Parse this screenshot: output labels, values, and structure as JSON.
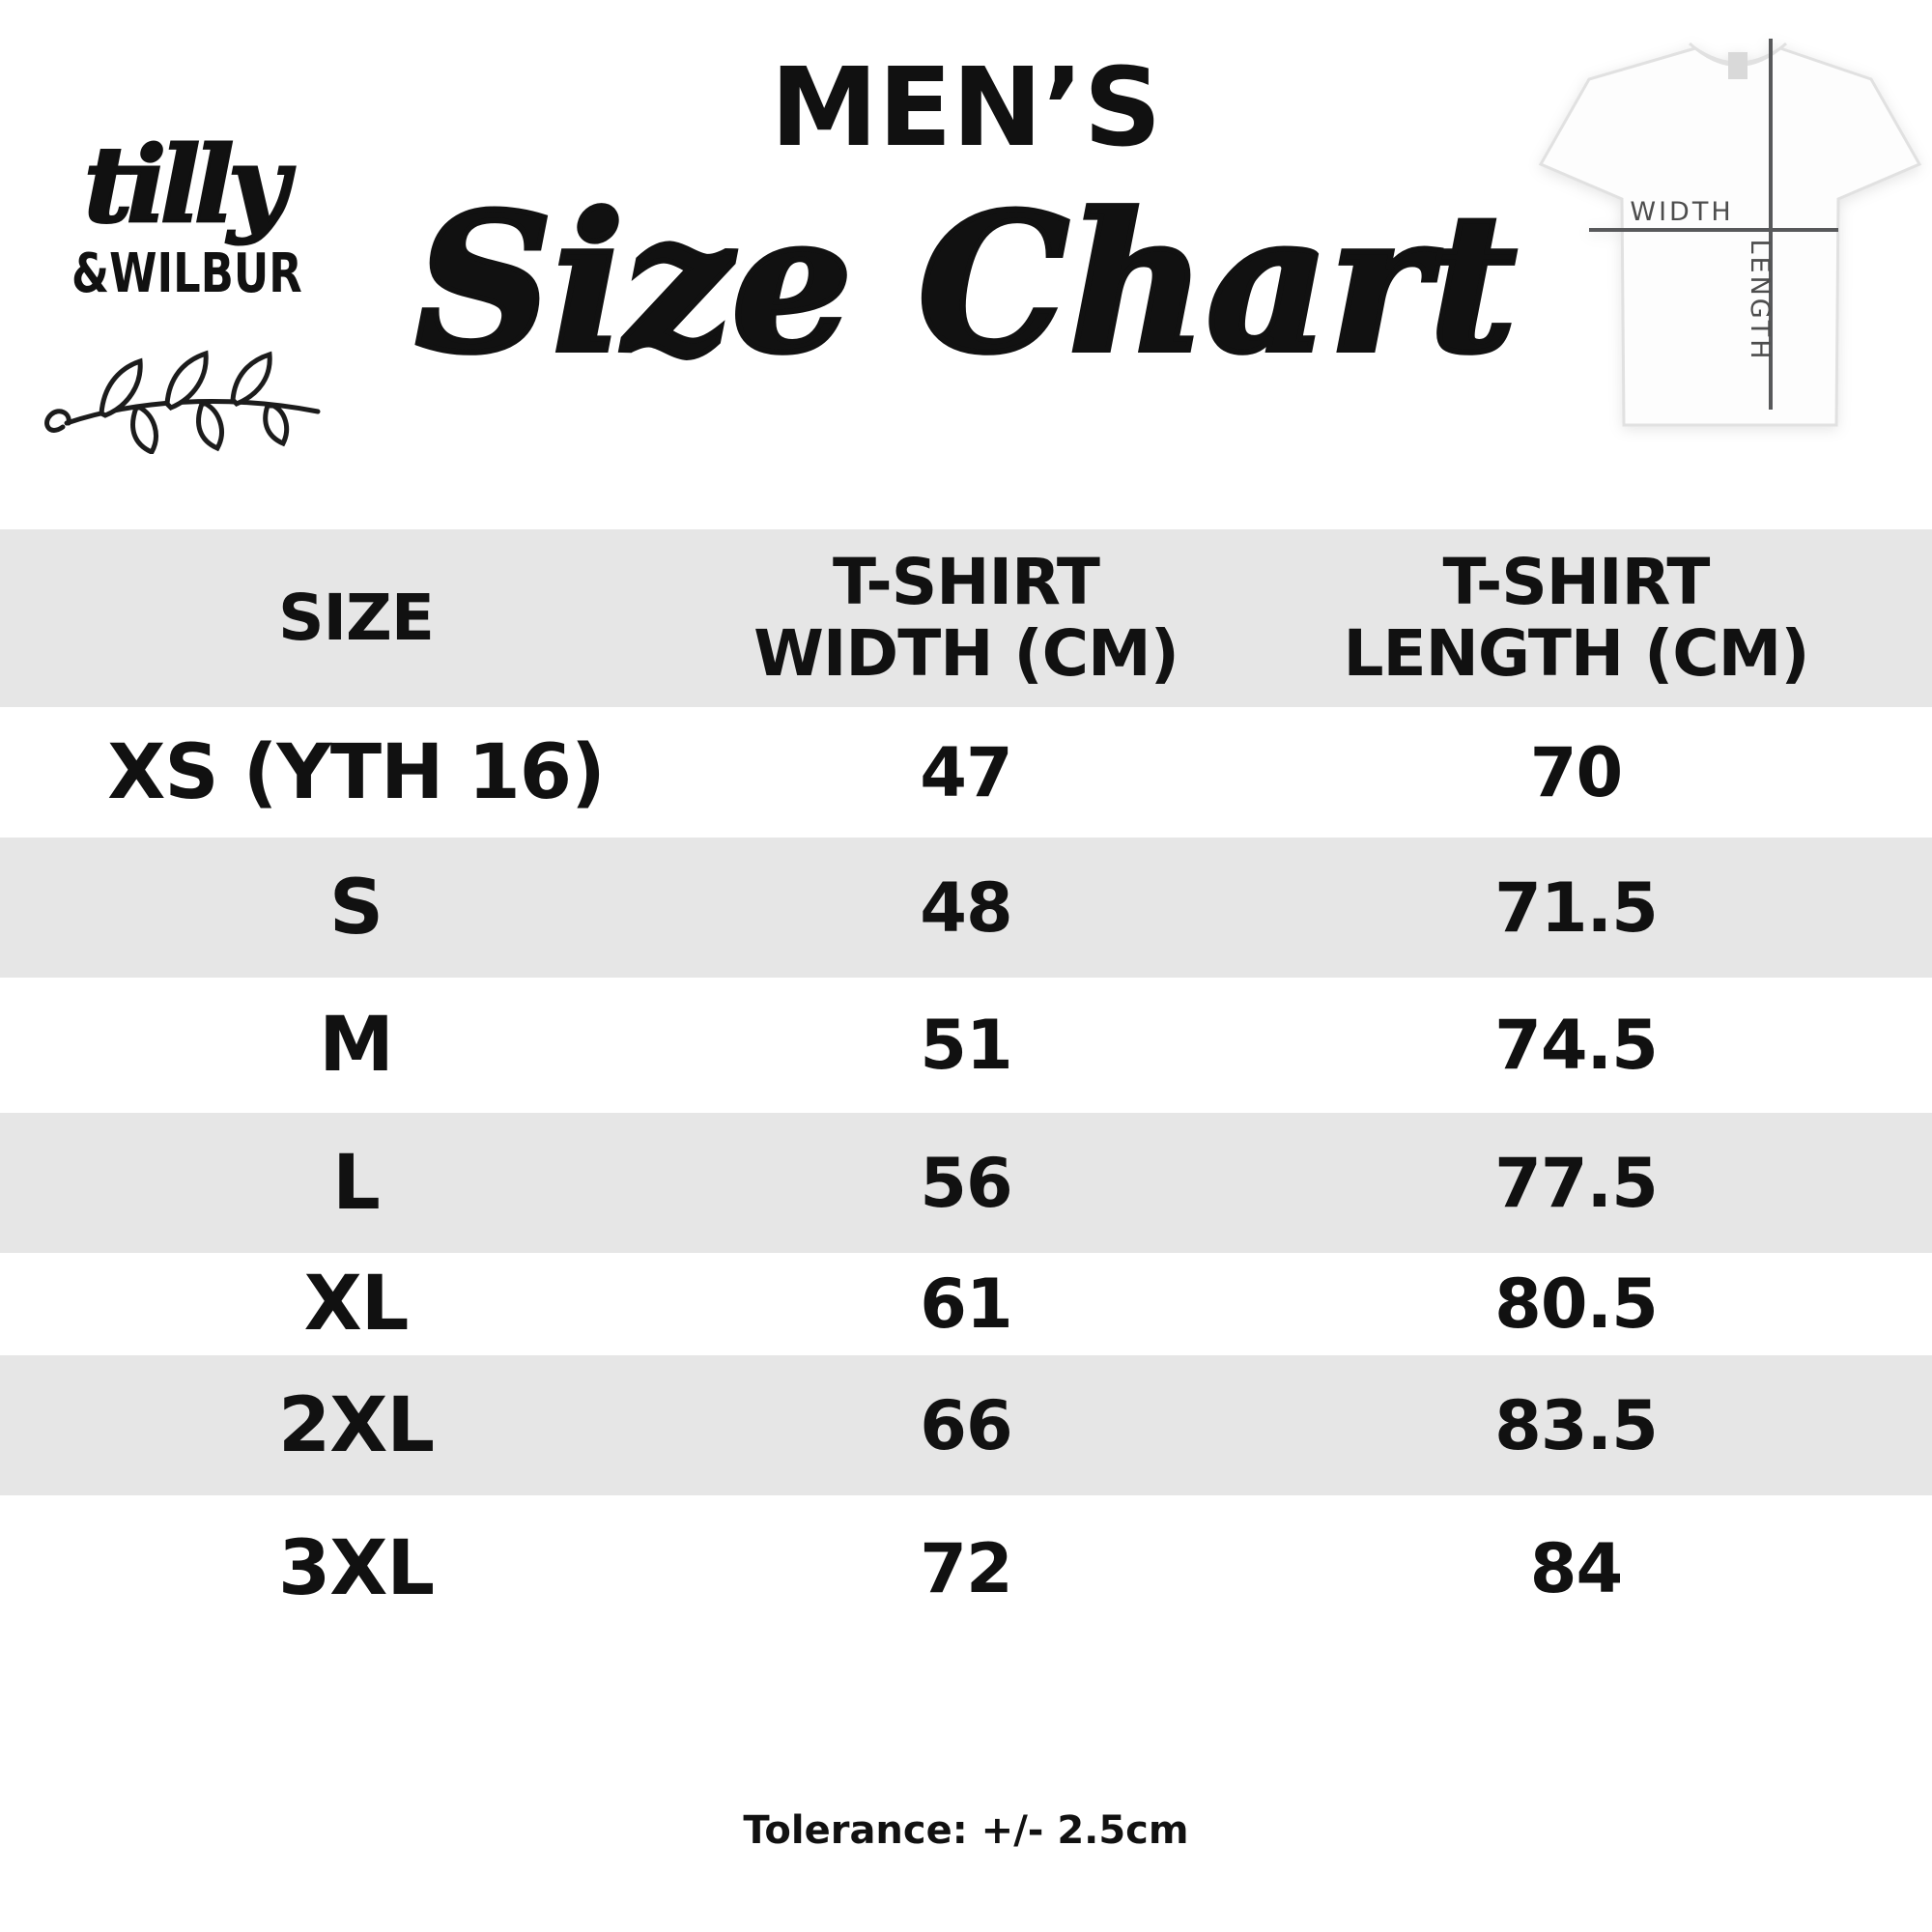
{
  "brand": {
    "script": "tilly",
    "caps": "&WILBUR"
  },
  "header": {
    "category": "MEN’S",
    "title": "Size Chart"
  },
  "diagram": {
    "width_label": "WIDTH",
    "length_label": "LENGTH"
  },
  "table": {
    "columns": [
      {
        "lines": [
          "SIZE"
        ]
      },
      {
        "lines": [
          "T-SHIRT",
          "WIDTH (CM)"
        ]
      },
      {
        "lines": [
          "T-SHIRT",
          "LENGTH (CM)"
        ]
      }
    ],
    "rows": [
      {
        "size": "XS (YTH 16)",
        "width": "47",
        "length": "70"
      },
      {
        "size": "S",
        "width": "48",
        "length": "71.5"
      },
      {
        "size": "M",
        "width": "51",
        "length": "74.5"
      },
      {
        "size": "L",
        "width": "56",
        "length": "77.5"
      },
      {
        "size": "XL",
        "width": "61",
        "length": "80.5"
      },
      {
        "size": "2XL",
        "width": "66",
        "length": "83.5"
      },
      {
        "size": "3XL",
        "width": "72",
        "length": "84"
      }
    ]
  },
  "footer": {
    "tolerance": "Tolerance: +/- 2.5cm"
  },
  "colors": {
    "stripe": "#e6e6e6",
    "ink": "#111111",
    "diagram_line": "#58595b"
  }
}
